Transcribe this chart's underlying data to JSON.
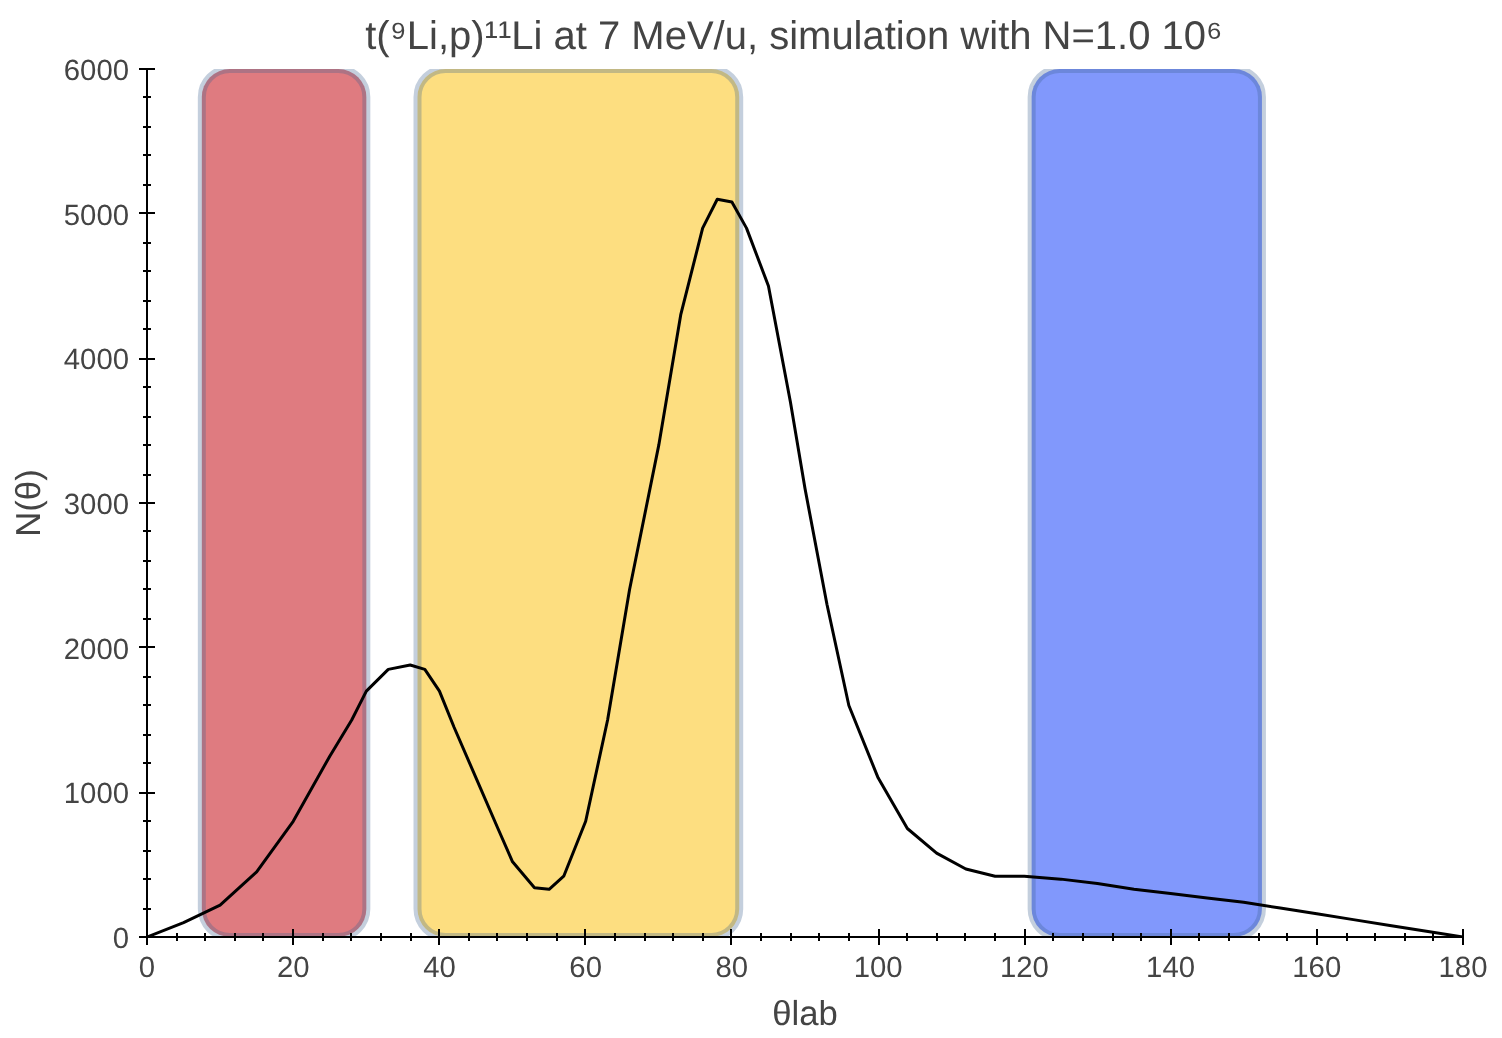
{
  "chart_data": {
    "type": "line",
    "title": "t(⁹Li,p)¹¹Li at 7 MeV/u,  simulation  with N=1.0 10⁶",
    "xlabel": "θlab",
    "ylabel": "N(θ)",
    "x": [
      0,
      5,
      10,
      15,
      20,
      25,
      28,
      30,
      33,
      36,
      38,
      40,
      42,
      45,
      48,
      50,
      53,
      55,
      57,
      60,
      63,
      66,
      70,
      73,
      76,
      78,
      80,
      82,
      85,
      88,
      90,
      93,
      96,
      100,
      104,
      108,
      112,
      116,
      120,
      125,
      130,
      135,
      140,
      145,
      150,
      155,
      160,
      165,
      170,
      175,
      180
    ],
    "series": [
      {
        "color": "#000000",
        "values": [
          0,
          100,
          220,
          450,
          800,
          1250,
          1500,
          1700,
          1850,
          1880,
          1850,
          1700,
          1450,
          1100,
          750,
          520,
          340,
          330,
          420,
          800,
          1500,
          2400,
          3400,
          4300,
          4900,
          5100,
          5080,
          4900,
          4500,
          3700,
          3100,
          2300,
          1600,
          1100,
          750,
          580,
          470,
          420,
          420,
          400,
          370,
          330,
          300,
          270,
          240,
          200,
          160,
          120,
          80,
          40,
          0
        ]
      }
    ],
    "xlim": [
      0,
      180
    ],
    "ylim": [
      0,
      6000
    ],
    "xticks": [
      0,
      20,
      40,
      60,
      80,
      100,
      120,
      140,
      160,
      180
    ],
    "yticks": [
      0,
      1000,
      2000,
      3000,
      4000,
      5000,
      6000
    ],
    "bands": [
      {
        "axis": "x",
        "from": 7.5,
        "to": 30,
        "color": "#d9646a"
      },
      {
        "axis": "x",
        "from": 37,
        "to": 81,
        "color": "#fdd86a"
      },
      {
        "axis": "x",
        "from": 121,
        "to": 152.5,
        "color": "#6b86fb"
      }
    ],
    "grid": false,
    "marker": "none",
    "line_style": "solid"
  }
}
